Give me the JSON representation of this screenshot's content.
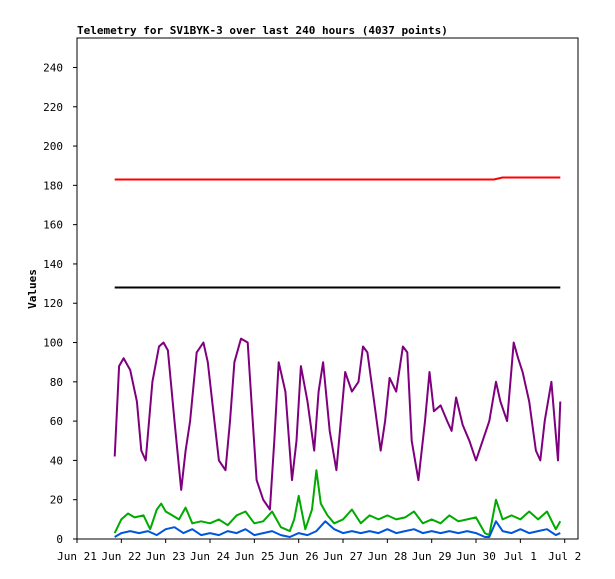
{
  "chart_data": {
    "type": "line",
    "title": "Telemetry for SV1BYK-3 over last 240 hours (4037 points)",
    "xlabel": "",
    "ylabel": "Values",
    "x_ticks": [
      "Jun 21",
      "Jun 22",
      "Jun 23",
      "Jun 24",
      "Jun 25",
      "Jun 26",
      "Jun 27",
      "Jun 28",
      "Jun 29",
      "Jun 30",
      "Jul 1",
      "Jul 2"
    ],
    "y_ticks": [
      "0",
      "20",
      "40",
      "60",
      "80",
      "100",
      "120",
      "140",
      "160",
      "180",
      "200",
      "220",
      "240"
    ],
    "xlim": [
      0,
      11.3
    ],
    "ylim": [
      0,
      255
    ],
    "grid": false,
    "legend": "none",
    "x_units": "days since Jun 21 00:00",
    "series": [
      {
        "color": "#ff0000",
        "x": [
          0.85,
          1.5,
          2.0,
          3.0,
          4.0,
          5.0,
          6.0,
          7.0,
          8.0,
          9.0,
          9.4,
          9.6,
          10.0,
          10.5,
          10.9
        ],
        "y": [
          183,
          183,
          183,
          183,
          183,
          183,
          183,
          183,
          183,
          183,
          183,
          184,
          184,
          184,
          184
        ]
      },
      {
        "color": "#000000",
        "x": [
          0.85,
          10.9
        ],
        "y": [
          128,
          128
        ]
      },
      {
        "color": "#7f007f",
        "x": [
          0.85,
          0.95,
          1.05,
          1.2,
          1.35,
          1.45,
          1.55,
          1.7,
          1.85,
          1.95,
          2.05,
          2.2,
          2.35,
          2.45,
          2.55,
          2.7,
          2.85,
          2.95,
          3.05,
          3.2,
          3.35,
          3.45,
          3.55,
          3.7,
          3.85,
          3.95,
          4.05,
          4.2,
          4.35,
          4.45,
          4.55,
          4.7,
          4.85,
          4.95,
          5.05,
          5.2,
          5.35,
          5.45,
          5.55,
          5.7,
          5.85,
          5.95,
          6.05,
          6.2,
          6.35,
          6.45,
          6.55,
          6.7,
          6.85,
          6.95,
          7.05,
          7.2,
          7.35,
          7.45,
          7.55,
          7.7,
          7.85,
          7.95,
          8.05,
          8.2,
          8.35,
          8.45,
          8.55,
          8.7,
          8.85,
          9.0,
          9.3,
          9.45,
          9.55,
          9.7,
          9.85,
          9.95,
          10.05,
          10.2,
          10.35,
          10.45,
          10.55,
          10.7,
          10.85,
          10.9
        ],
        "y": [
          42,
          88,
          92,
          86,
          70,
          45,
          40,
          80,
          98,
          100,
          96,
          60,
          25,
          45,
          60,
          95,
          100,
          90,
          70,
          40,
          35,
          60,
          90,
          102,
          100,
          65,
          30,
          20,
          15,
          50,
          90,
          75,
          30,
          50,
          88,
          70,
          45,
          75,
          90,
          55,
          35,
          60,
          85,
          75,
          80,
          98,
          95,
          70,
          45,
          60,
          82,
          75,
          98,
          95,
          50,
          30,
          60,
          85,
          65,
          68,
          60,
          55,
          72,
          58,
          50,
          40,
          60,
          80,
          70,
          60,
          100,
          92,
          85,
          70,
          45,
          40,
          60,
          80,
          40,
          70
        ]
      },
      {
        "color": "#00aa00",
        "x": [
          0.85,
          1.0,
          1.15,
          1.3,
          1.5,
          1.65,
          1.8,
          1.9,
          2.0,
          2.15,
          2.3,
          2.45,
          2.6,
          2.8,
          3.0,
          3.2,
          3.4,
          3.6,
          3.8,
          4.0,
          4.2,
          4.4,
          4.6,
          4.8,
          4.9,
          5.0,
          5.15,
          5.3,
          5.4,
          5.5,
          5.65,
          5.8,
          6.0,
          6.2,
          6.4,
          6.6,
          6.8,
          7.0,
          7.2,
          7.4,
          7.6,
          7.8,
          8.0,
          8.2,
          8.4,
          8.6,
          8.8,
          9.0,
          9.2,
          9.3,
          9.45,
          9.6,
          9.8,
          10.0,
          10.2,
          10.4,
          10.6,
          10.8,
          10.9
        ],
        "y": [
          3,
          10,
          13,
          11,
          12,
          5,
          15,
          18,
          14,
          12,
          10,
          16,
          8,
          9,
          8,
          10,
          7,
          12,
          14,
          8,
          9,
          14,
          6,
          4,
          10,
          22,
          5,
          15,
          35,
          18,
          12,
          8,
          10,
          15,
          8,
          12,
          10,
          12,
          10,
          11,
          14,
          8,
          10,
          8,
          12,
          9,
          10,
          11,
          3,
          2,
          20,
          10,
          12,
          10,
          14,
          10,
          14,
          5,
          9
        ]
      },
      {
        "color": "#0055dd",
        "x": [
          0.85,
          1.0,
          1.2,
          1.4,
          1.6,
          1.8,
          2.0,
          2.2,
          2.4,
          2.6,
          2.8,
          3.0,
          3.2,
          3.4,
          3.6,
          3.8,
          4.0,
          4.2,
          4.4,
          4.6,
          4.8,
          5.0,
          5.2,
          5.4,
          5.6,
          5.8,
          6.0,
          6.2,
          6.4,
          6.6,
          6.8,
          7.0,
          7.2,
          7.4,
          7.6,
          7.8,
          8.0,
          8.2,
          8.4,
          8.6,
          8.8,
          9.0,
          9.2,
          9.3,
          9.45,
          9.6,
          9.8,
          10.0,
          10.2,
          10.4,
          10.6,
          10.8,
          10.9
        ],
        "y": [
          1,
          3,
          4,
          3,
          4,
          2,
          5,
          6,
          3,
          5,
          2,
          3,
          2,
          4,
          3,
          5,
          2,
          3,
          4,
          2,
          1,
          3,
          2,
          4,
          9,
          5,
          3,
          4,
          3,
          4,
          3,
          5,
          3,
          4,
          5,
          3,
          4,
          3,
          4,
          3,
          4,
          3,
          1,
          1,
          9,
          4,
          3,
          5,
          3,
          4,
          5,
          2,
          3
        ]
      }
    ]
  }
}
